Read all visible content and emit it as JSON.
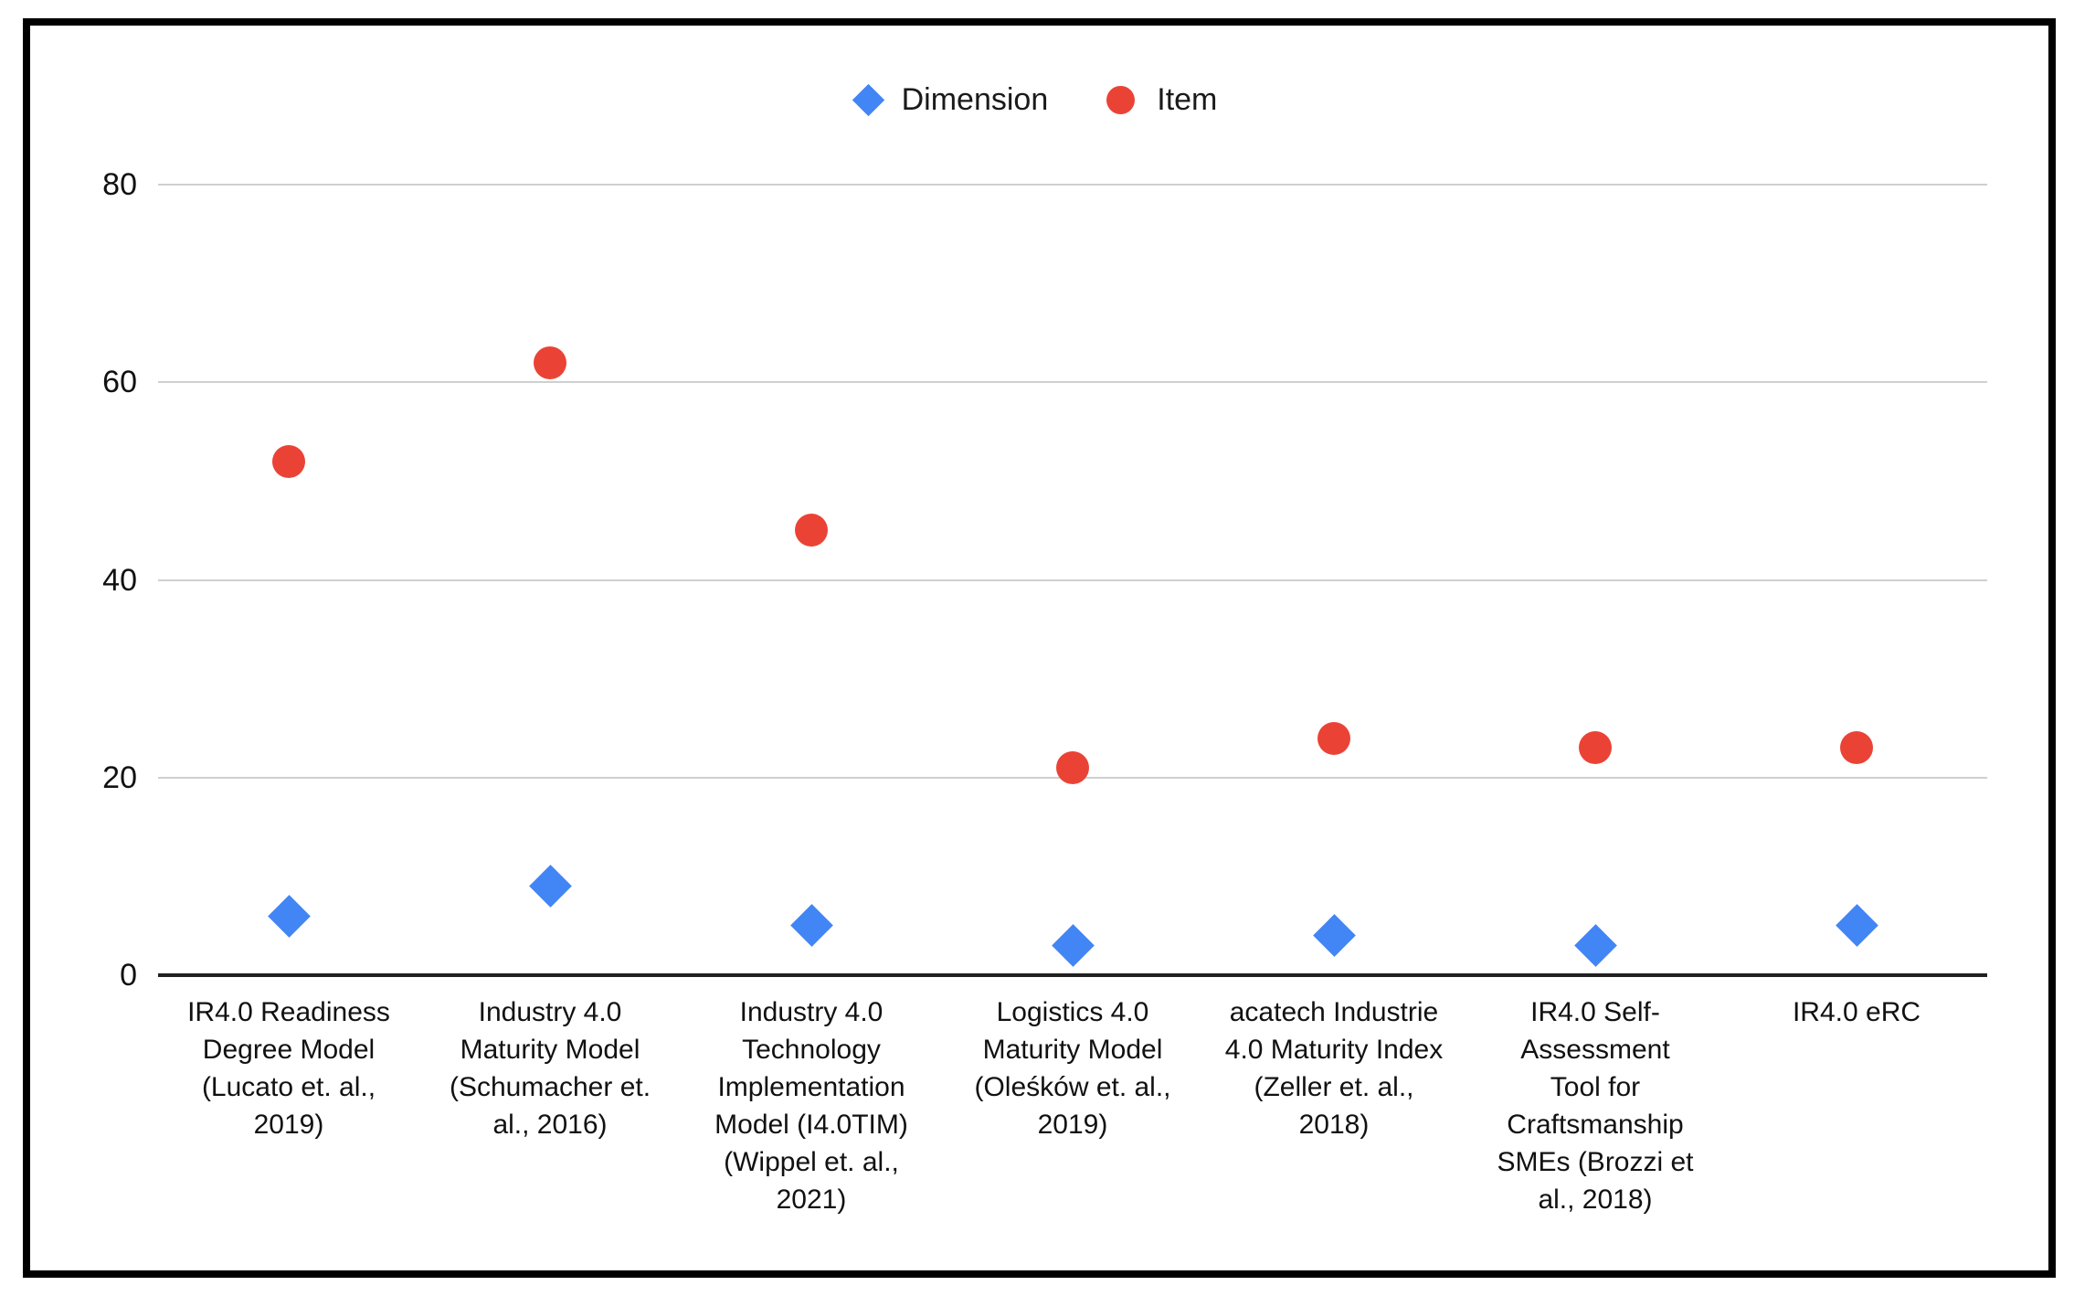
{
  "chart_data": {
    "type": "scatter",
    "title": "",
    "xlabel": "",
    "ylabel": "",
    "categories": [
      "IR4.0 Readiness\nDegree Model\n(Lucato et. al.,\n2019)",
      "Industry 4.0\nMaturity Model\n(Schumacher et.\nal., 2016)",
      "Industry 4.0\nTechnology\nImplementation\nModel (I4.0TIM)\n(Wippel et. al.,\n2021)",
      "Logistics 4.0\nMaturity Model\n(Oleśków et. al.,\n2019)",
      "acatech Industrie\n4.0 Maturity Index\n(Zeller et. al.,\n2018)",
      "IR4.0 Self-\nAssessment\nTool for\nCraftsmanship\nSMEs (Brozzi et\nal., 2018)",
      "IR4.0 eRC"
    ],
    "series": [
      {
        "name": "Dimension",
        "marker": "diamond",
        "color": "#4285F4",
        "values": [
          6,
          9,
          5,
          3,
          4,
          3,
          5
        ]
      },
      {
        "name": "Item",
        "marker": "circle",
        "color": "#EA4335",
        "values": [
          52,
          62,
          45,
          21,
          24,
          23,
          23
        ]
      }
    ],
    "ylim": [
      0,
      80
    ],
    "yticks": [
      0,
      20,
      40,
      60,
      80
    ],
    "grid": true,
    "legend_position": "top-center"
  },
  "colors": {
    "dimension": "#4285F4",
    "item": "#EA4335",
    "gridline": "#CFCFCF",
    "axis_line": "#212121",
    "frame": "#000000",
    "text": "#111111"
  }
}
